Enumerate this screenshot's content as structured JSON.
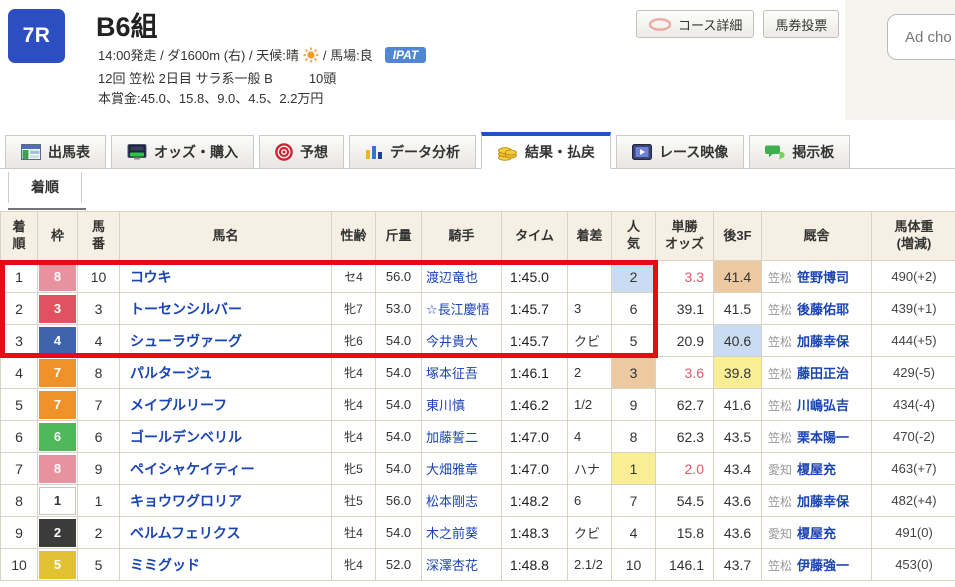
{
  "colors": {
    "accent_blue": "#2d4ec0",
    "active_tab_blue": "#1d55c4",
    "link_blue": "#1a43b3",
    "highlight_red_box": "#e60b15",
    "odds_hot_red": "#e9546b",
    "hl_yellow": "#f9ee94",
    "hl_blue": "#c9dcf2",
    "hl_tan": "#ecc9a0",
    "header_beige": "#f5efe4",
    "waku": {
      "1": "#ffffff",
      "2": "#3b3b3b",
      "3": "#e05260",
      "4": "#3e64ae",
      "5": "#e0c232",
      "6": "#4eb85a",
      "7": "#f0922a",
      "8": "#e8919f"
    }
  },
  "header": {
    "race_no": "7R",
    "title": "B6組",
    "info1_a": "14:00発走 / ダ1600m (右) / 天候:晴",
    "sun_icon": "sun-icon",
    "info1_b": "/ 馬場:良",
    "ipat": "IPAT",
    "info2": "12回 笠松 2日目 サラ系一般 B",
    "head_count": "10頭",
    "info3": "本賞金:45.0、15.8、9.0、4.5、2.2万円",
    "buttons": [
      {
        "key": "course-detail",
        "label": "コース詳細",
        "icon": "course-oval-icon"
      },
      {
        "key": "baken-vote",
        "label": "馬券投票",
        "icon": ""
      }
    ],
    "ad_text": "Ad cho"
  },
  "tabs": [
    {
      "key": "entries",
      "label": "出馬表",
      "icon": "entry-table-icon",
      "active": false
    },
    {
      "key": "odds-purchase",
      "label": "オッズ・購入",
      "icon": "odds-ipat-icon",
      "active": false
    },
    {
      "key": "forecast",
      "label": "予想",
      "icon": "forecast-target-icon",
      "active": false
    },
    {
      "key": "data-analysis",
      "label": "データ分析",
      "icon": "bar-chart-icon",
      "active": false
    },
    {
      "key": "results-payout",
      "label": "結果・払戻",
      "icon": "coins-icon",
      "active": true
    },
    {
      "key": "race-video",
      "label": "レース映像",
      "icon": "video-player-icon",
      "active": false
    },
    {
      "key": "bbs",
      "label": "掲示板",
      "icon": "speech-bubbles-icon",
      "active": false
    }
  ],
  "subtab": {
    "label": "着順"
  },
  "table": {
    "headers": [
      {
        "key": "rank",
        "label": "着\n順"
      },
      {
        "key": "waku",
        "label": "枠"
      },
      {
        "key": "horse-number",
        "label": "馬\n番"
      },
      {
        "key": "horse-name",
        "label": "馬名"
      },
      {
        "key": "sex-age",
        "label": "性齢"
      },
      {
        "key": "weight",
        "label": "斤量"
      },
      {
        "key": "jockey",
        "label": "騎手"
      },
      {
        "key": "time",
        "label": "タイム"
      },
      {
        "key": "margin",
        "label": "着差"
      },
      {
        "key": "popularity",
        "label": "人\n気"
      },
      {
        "key": "win-odds",
        "label": "単勝\nオッズ"
      },
      {
        "key": "last3f",
        "label": "後3F"
      },
      {
        "key": "stable",
        "label": "厩舎"
      },
      {
        "key": "horse-weight",
        "label": "馬体重\n(増減)"
      }
    ],
    "rows": [
      {
        "rank": "1",
        "waku": "8",
        "horse_no": "10",
        "name": "コウキ",
        "sex_age": "セ4",
        "weight": "56.0",
        "jockey": "渡辺竜也",
        "time": "1:45.0",
        "margin": "",
        "popularity": "2",
        "pop_hl": "blue",
        "odds": "3.3",
        "odds_hot": true,
        "last3f": "41.4",
        "f3_hl": "tan",
        "stable_area": "笠松",
        "stable_name": "笹野博司",
        "horse_weight": "490(+2)"
      },
      {
        "rank": "2",
        "waku": "3",
        "horse_no": "3",
        "name": "トーセンシルバー",
        "sex_age": "牝7",
        "weight": "53.0",
        "jockey": "☆長江慶悟",
        "time": "1:45.7",
        "margin": "3",
        "popularity": "6",
        "pop_hl": "",
        "odds": "39.1",
        "odds_hot": false,
        "last3f": "41.5",
        "f3_hl": "",
        "stable_area": "笠松",
        "stable_name": "後藤佑耶",
        "horse_weight": "439(+1)"
      },
      {
        "rank": "3",
        "waku": "4",
        "horse_no": "4",
        "name": "シューラヴァーグ",
        "sex_age": "牝6",
        "weight": "54.0",
        "jockey": "今井貴大",
        "time": "1:45.7",
        "margin": "クビ",
        "popularity": "5",
        "pop_hl": "",
        "odds": "20.9",
        "odds_hot": false,
        "last3f": "40.6",
        "f3_hl": "blue",
        "stable_area": "笠松",
        "stable_name": "加藤幸保",
        "horse_weight": "444(+5)"
      },
      {
        "rank": "4",
        "waku": "7",
        "horse_no": "8",
        "name": "パルタージュ",
        "sex_age": "牝4",
        "weight": "54.0",
        "jockey": "塚本征吾",
        "time": "1:46.1",
        "margin": "2",
        "popularity": "3",
        "pop_hl": "tan",
        "odds": "3.6",
        "odds_hot": true,
        "last3f": "39.8",
        "f3_hl": "yellow",
        "stable_area": "笠松",
        "stable_name": "藤田正治",
        "horse_weight": "429(-5)"
      },
      {
        "rank": "5",
        "waku": "7",
        "horse_no": "7",
        "name": "メイプルリーフ",
        "sex_age": "牝4",
        "weight": "54.0",
        "jockey": "東川慎",
        "time": "1:46.2",
        "margin": "1/2",
        "popularity": "9",
        "pop_hl": "",
        "odds": "62.7",
        "odds_hot": false,
        "last3f": "41.6",
        "f3_hl": "",
        "stable_area": "笠松",
        "stable_name": "川嶋弘吉",
        "horse_weight": "434(-4)"
      },
      {
        "rank": "6",
        "waku": "6",
        "horse_no": "6",
        "name": "ゴールデンベリル",
        "sex_age": "牝4",
        "weight": "54.0",
        "jockey": "加藤誓二",
        "time": "1:47.0",
        "margin": "4",
        "popularity": "8",
        "pop_hl": "",
        "odds": "62.3",
        "odds_hot": false,
        "last3f": "43.5",
        "f3_hl": "",
        "stable_area": "笠松",
        "stable_name": "栗本陽一",
        "horse_weight": "470(-2)"
      },
      {
        "rank": "7",
        "waku": "8",
        "horse_no": "9",
        "name": "ペイシャケイティー",
        "sex_age": "牝5",
        "weight": "54.0",
        "jockey": "大畑雅章",
        "time": "1:47.0",
        "margin": "ハナ",
        "popularity": "1",
        "pop_hl": "yellow",
        "odds": "2.0",
        "odds_hot": true,
        "last3f": "43.4",
        "f3_hl": "",
        "stable_area": "愛知",
        "stable_name": "榎屋充",
        "horse_weight": "463(+7)"
      },
      {
        "rank": "8",
        "waku": "1",
        "horse_no": "1",
        "name": "キョウワグロリア",
        "sex_age": "牡5",
        "weight": "56.0",
        "jockey": "松本剛志",
        "time": "1:48.2",
        "margin": "6",
        "popularity": "7",
        "pop_hl": "",
        "odds": "54.5",
        "odds_hot": false,
        "last3f": "43.6",
        "f3_hl": "",
        "stable_area": "笠松",
        "stable_name": "加藤幸保",
        "horse_weight": "482(+4)"
      },
      {
        "rank": "9",
        "waku": "2",
        "horse_no": "2",
        "name": "ベルムフェリクス",
        "sex_age": "牡4",
        "weight": "54.0",
        "jockey": "木之前葵",
        "time": "1:48.3",
        "margin": "クビ",
        "popularity": "4",
        "pop_hl": "",
        "odds": "15.8",
        "odds_hot": false,
        "last3f": "43.6",
        "f3_hl": "",
        "stable_area": "愛知",
        "stable_name": "榎屋充",
        "horse_weight": "491(0)"
      },
      {
        "rank": "10",
        "waku": "5",
        "horse_no": "5",
        "name": "ミミグッド",
        "sex_age": "牝4",
        "weight": "52.0",
        "jockey": "深澤杏花",
        "time": "1:48.8",
        "margin": "2.1/2",
        "popularity": "10",
        "pop_hl": "",
        "odds": "146.1",
        "odds_hot": false,
        "last3f": "43.7",
        "f3_hl": "",
        "stable_area": "笠松",
        "stable_name": "伊藤強一",
        "horse_weight": "453(0)"
      }
    ]
  }
}
